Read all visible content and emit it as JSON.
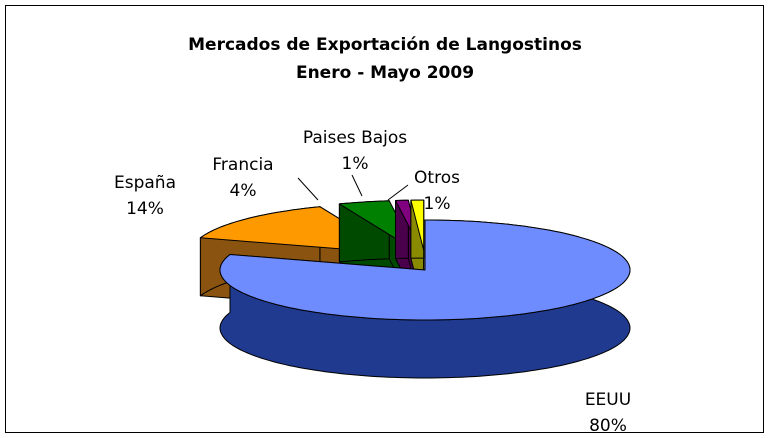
{
  "chart_data": {
    "type": "pie",
    "title": "Mercados de Exportación de Langostinos",
    "subtitle": "Enero - Mayo 2009",
    "categories": [
      "EEUU",
      "España",
      "Francia",
      "Paises Bajos",
      "Otros"
    ],
    "values": [
      80,
      14,
      4,
      1,
      1
    ],
    "value_labels": [
      "80%",
      "14%",
      "4%",
      "1%",
      "1%"
    ],
    "colors": [
      "#6f8cff",
      "#ff9900",
      "#008000",
      "#800080",
      "#ffff00"
    ],
    "side_colors": [
      "#1f3a8f",
      "#8a5410",
      "#004a00",
      "#4a004a",
      "#8a8a00"
    ]
  }
}
